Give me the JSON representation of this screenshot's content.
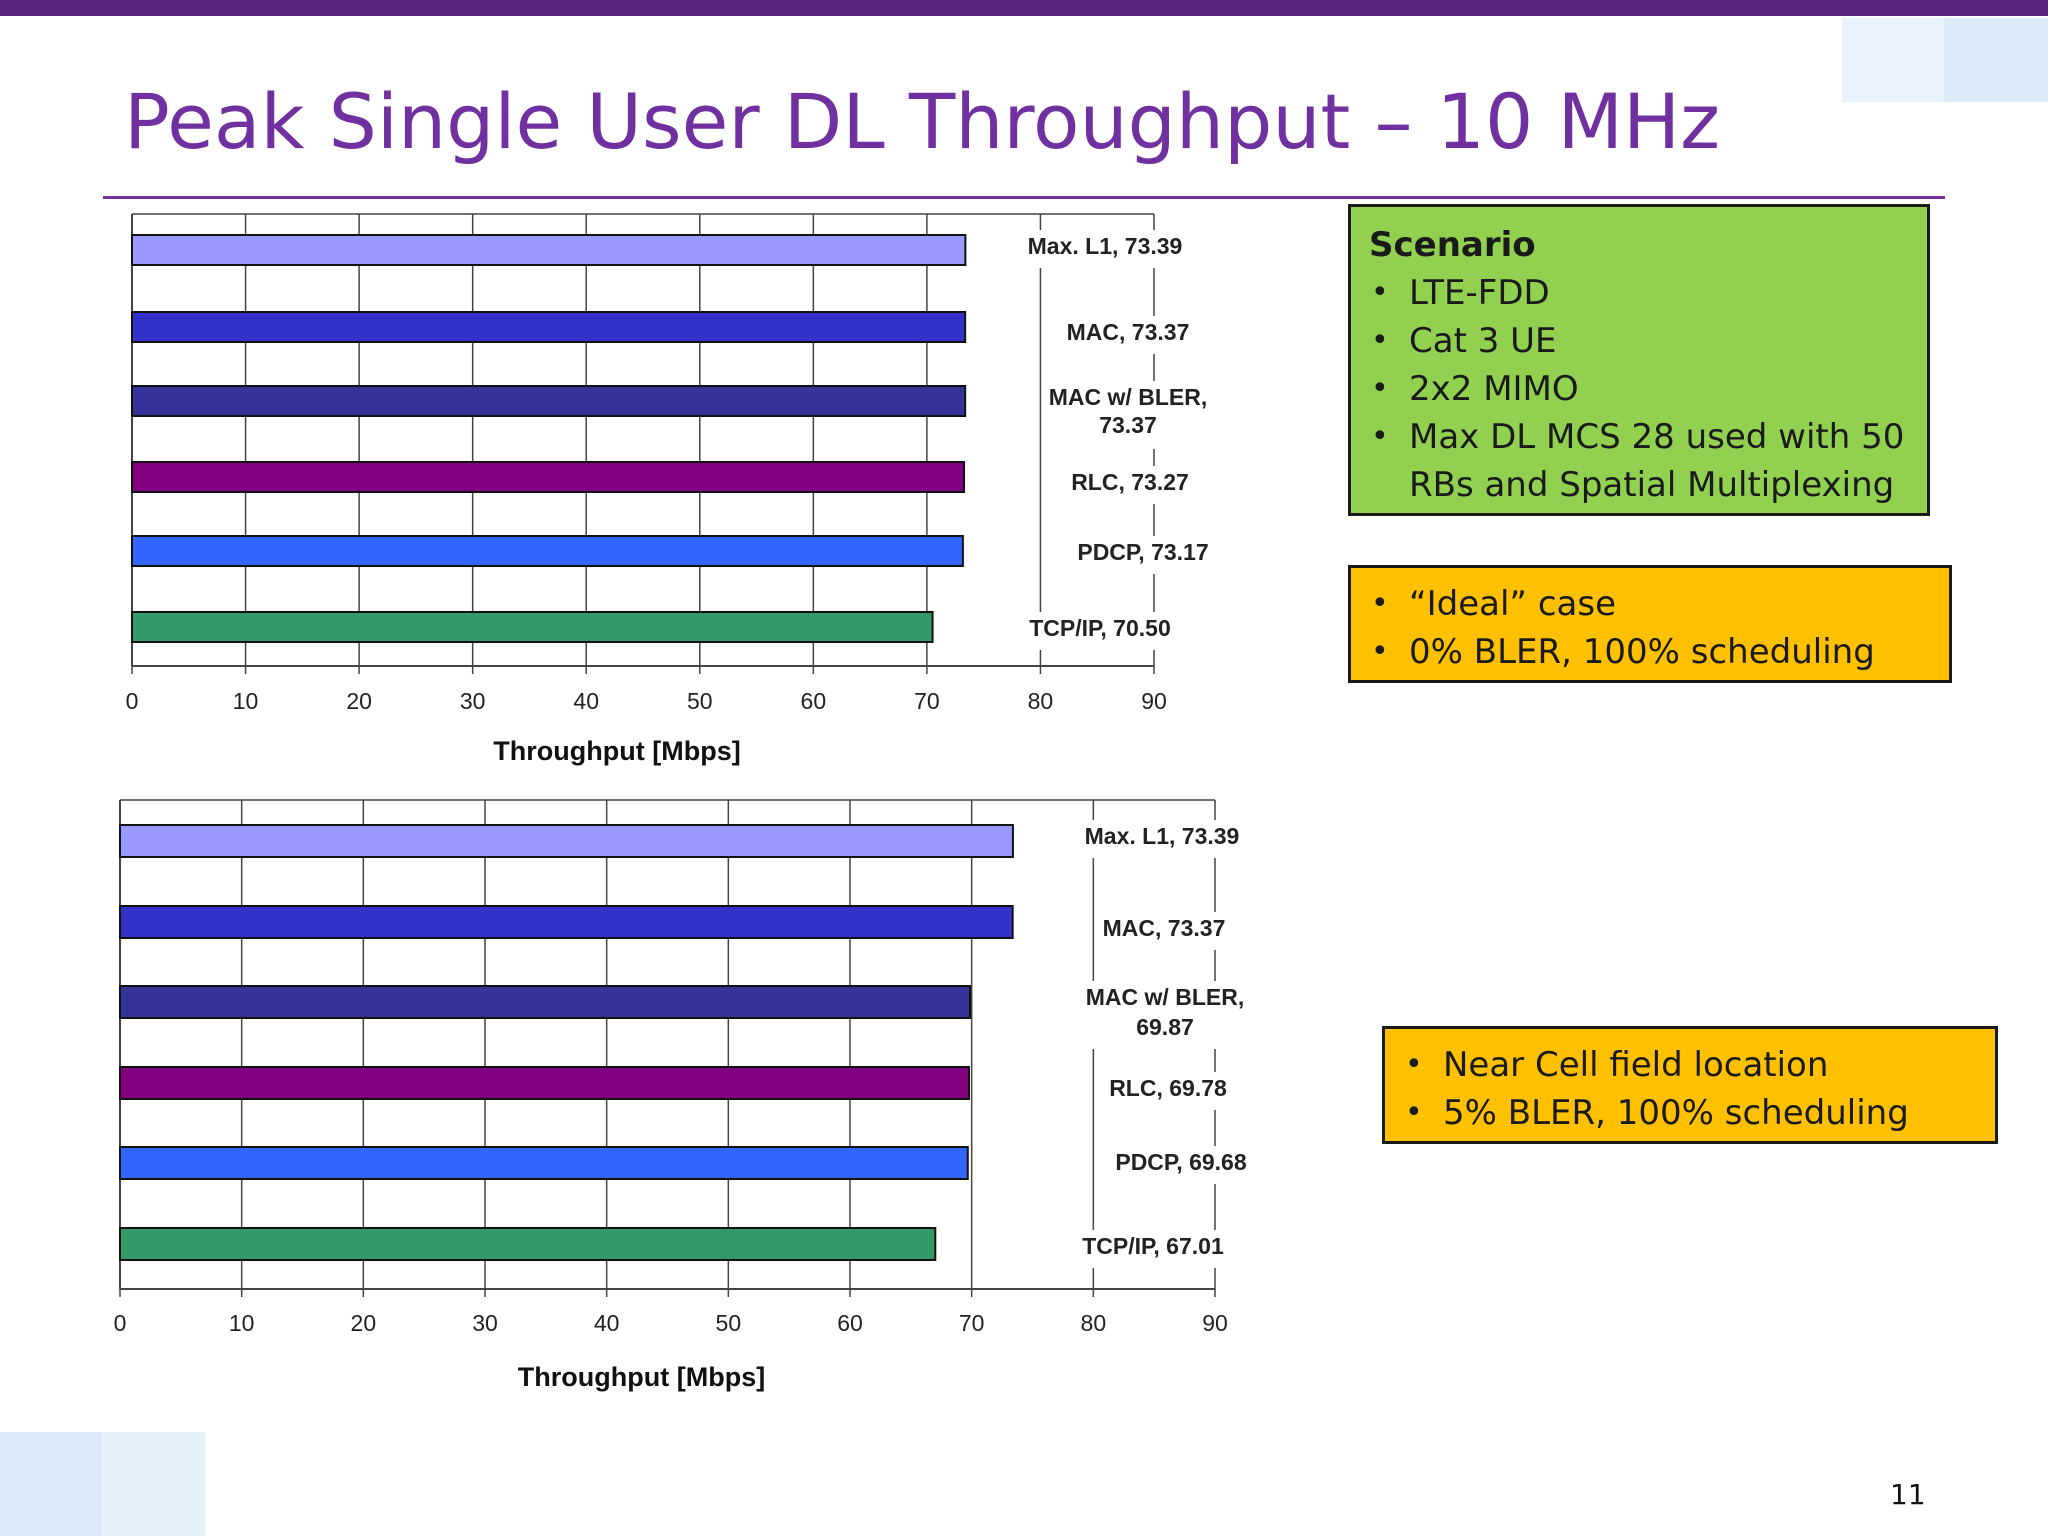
{
  "title": "Peak Single User DL Throughput – 10 MHz",
  "page_number": "11",
  "colors": {
    "title": "#7030a0",
    "top_bar": "#5b2580",
    "scenario_box": "#92d050",
    "note_box": "#ffc000",
    "series": [
      "#9999ff",
      "#3333cc",
      "#333399",
      "#800080",
      "#3366ff",
      "#339966"
    ]
  },
  "scenario_box": {
    "heading": "Scenario",
    "items": [
      "LTE-FDD",
      "Cat 3 UE",
      "2x2 MIMO",
      "Max DL MCS 28 used with 50 RBs and Spatial Multiplexing"
    ]
  },
  "ideal_box": {
    "items": [
      "“Ideal” case",
      "0% BLER, 100% scheduling"
    ]
  },
  "near_cell_box": {
    "items": [
      "Near Cell field location",
      "5% BLER, 100% scheduling"
    ]
  },
  "chart_data": [
    {
      "type": "bar",
      "orientation": "horizontal",
      "categories": [
        "Max. L1",
        "MAC",
        "MAC w/ BLER",
        "RLC",
        "PDCP",
        "TCP/IP"
      ],
      "values": [
        73.39,
        73.37,
        73.37,
        73.27,
        73.17,
        70.5
      ],
      "data_labels": [
        [
          "Max. L1, 73.39"
        ],
        [
          "MAC, 73.37"
        ],
        [
          "MAC w/ BLER,",
          "73.37"
        ],
        [
          "RLC, 73.27"
        ],
        [
          "PDCP, 73.17"
        ],
        [
          "TCP/IP, 70.50"
        ]
      ],
      "xlabel": "Throughput [Mbps]",
      "xlim": [
        0,
        90
      ],
      "xticks": [
        0,
        10,
        20,
        30,
        40,
        50,
        60,
        70,
        80,
        90
      ],
      "grid": "vertical"
    },
    {
      "type": "bar",
      "orientation": "horizontal",
      "categories": [
        "Max. L1",
        "MAC",
        "MAC w/ BLER",
        "RLC",
        "PDCP",
        "TCP/IP"
      ],
      "values": [
        73.39,
        73.37,
        69.87,
        69.78,
        69.68,
        67.01
      ],
      "data_labels": [
        [
          "Max. L1, 73.39"
        ],
        [
          "MAC, 73.37"
        ],
        [
          "MAC w/ BLER,",
          "69.87"
        ],
        [
          "RLC, 69.78"
        ],
        [
          "PDCP, 69.68"
        ],
        [
          "TCP/IP, 67.01"
        ]
      ],
      "xlabel": "Throughput [Mbps]",
      "xlim": [
        0,
        90
      ],
      "xticks": [
        0,
        10,
        20,
        30,
        40,
        50,
        60,
        70,
        80,
        90
      ],
      "grid": "vertical"
    }
  ]
}
